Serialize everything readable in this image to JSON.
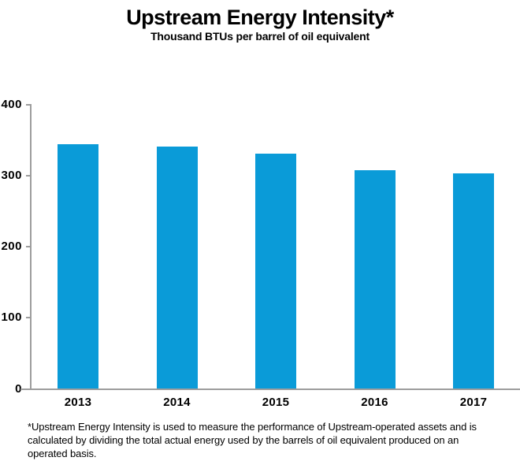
{
  "title": "Upstream Energy Intensity*",
  "subtitle": "Thousand BTUs per barrel of oil equivalent",
  "footnote": "*Upstream Energy Intensity is used to measure the performance of Upstream-operated assets and is calculated by dividing the total actual energy used by the barrels of oil equivalent produced on an operated basis.",
  "colors": {
    "bar": "#0a9bd8",
    "axis": "#9d9d9d",
    "text": "#000000"
  },
  "chart_data": {
    "type": "bar",
    "categories": [
      "2013",
      "2014",
      "2015",
      "2016",
      "2017"
    ],
    "values": [
      345,
      341,
      331,
      308,
      304
    ],
    "title": "Upstream Energy Intensity*",
    "subtitle": "Thousand BTUs per barrel of oil equivalent",
    "xlabel": "",
    "ylabel": "",
    "ylim": [
      0,
      400
    ],
    "yticks": [
      0,
      100,
      200,
      300,
      400
    ],
    "grid": false,
    "legend": false,
    "bar_color": "#0a9bd8"
  }
}
